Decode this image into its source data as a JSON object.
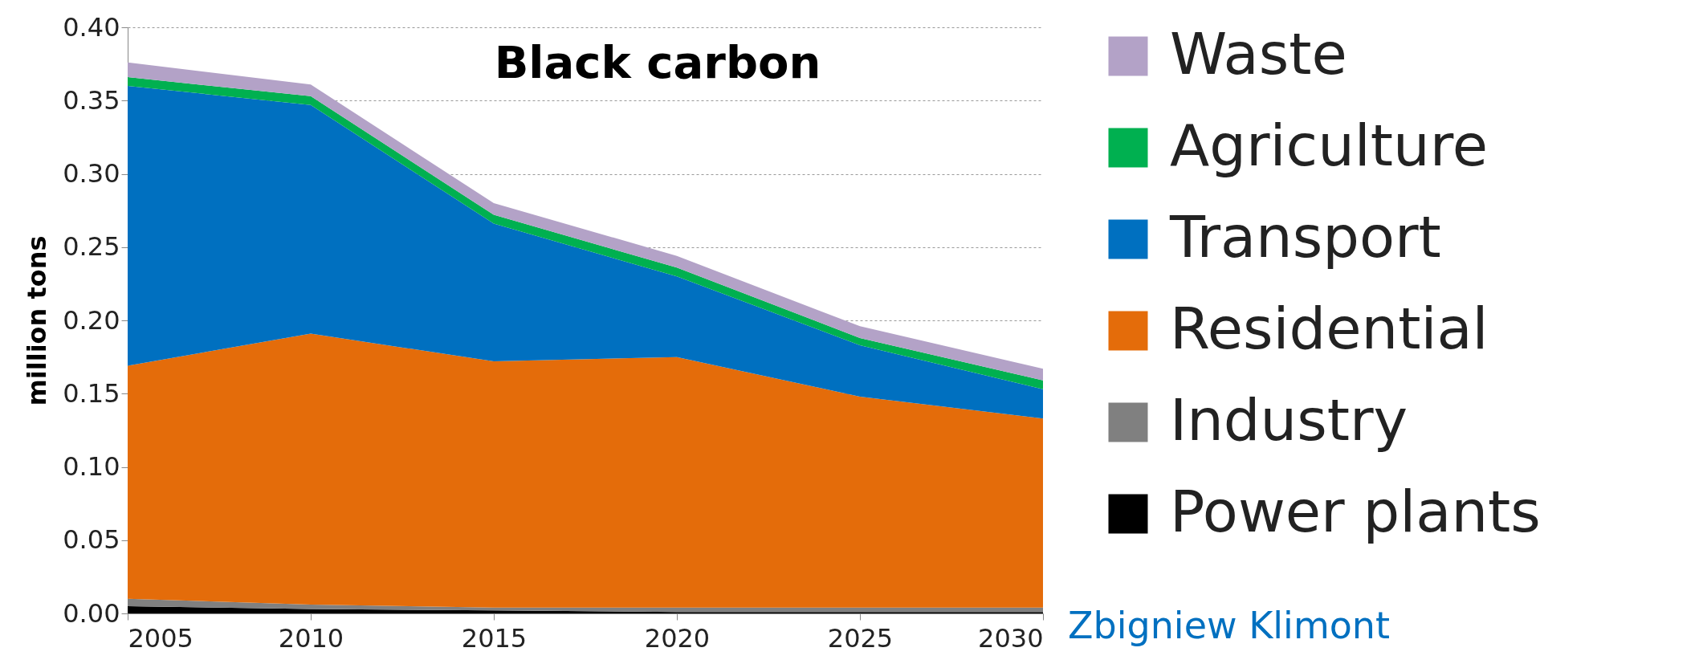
{
  "chart_data": {
    "type": "area",
    "stacked": true,
    "title": "Black carbon",
    "ylabel": "million tons",
    "x": [
      2005,
      2010,
      2015,
      2020,
      2025,
      2030
    ],
    "series": [
      {
        "name": "Power plants",
        "color": "#000000",
        "values": [
          0.005,
          0.003,
          0.002,
          0.001,
          0.001,
          0.001
        ]
      },
      {
        "name": "Industry",
        "color": "#808080",
        "values": [
          0.005,
          0.003,
          0.002,
          0.003,
          0.003,
          0.003
        ]
      },
      {
        "name": "Residential",
        "color": "#e46c0a",
        "values": [
          0.159,
          0.185,
          0.168,
          0.171,
          0.144,
          0.129
        ]
      },
      {
        "name": "Transport",
        "color": "#0070c0",
        "values": [
          0.191,
          0.156,
          0.094,
          0.055,
          0.035,
          0.02
        ]
      },
      {
        "name": "Agriculture",
        "color": "#00b050",
        "values": [
          0.006,
          0.006,
          0.006,
          0.006,
          0.005,
          0.006
        ]
      },
      {
        "name": "Waste",
        "color": "#b3a2c7",
        "values": [
          0.01,
          0.008,
          0.008,
          0.008,
          0.008,
          0.008
        ]
      }
    ],
    "xlim": [
      2005,
      2030
    ],
    "xticks": [
      2005,
      2010,
      2015,
      2020,
      2025,
      2030
    ],
    "ylim": [
      0,
      0.4
    ],
    "yticks": [
      {
        "value": 0,
        "label": "0.00"
      },
      0.05,
      {
        "value": 0.1,
        "label": "0.10"
      },
      0.15,
      {
        "value": 0.2,
        "label": "0.20"
      },
      0.25,
      {
        "value": 0.3,
        "label": "0.30"
      },
      0.35,
      {
        "value": 0.4,
        "label": "0.40"
      }
    ],
    "grid": "y",
    "legend": "right",
    "annotations": [
      "Zbigniew Klimont"
    ]
  }
}
